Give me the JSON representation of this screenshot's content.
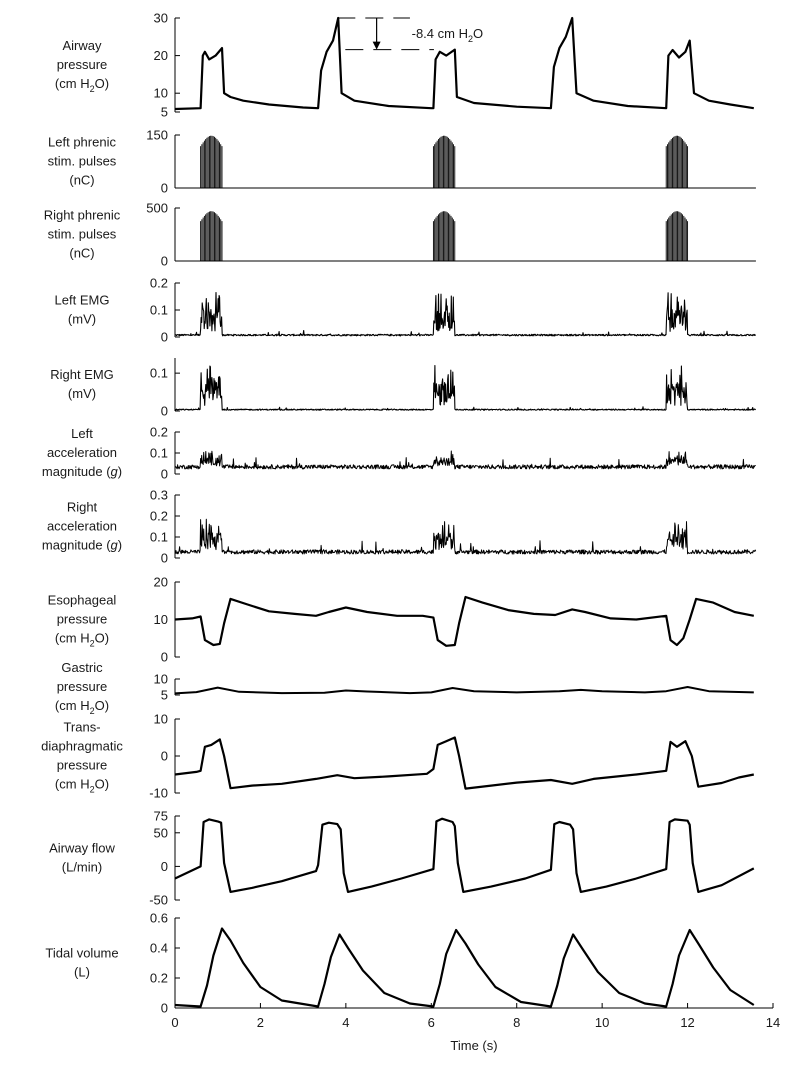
{
  "chart_data": {
    "type": "line",
    "xlabel": "Time (s)",
    "xlim": [
      0,
      14
    ],
    "xticks": [
      0,
      2,
      4,
      6,
      8,
      10,
      12,
      14
    ],
    "stim_windows": [
      [
        0.6,
        1.1
      ],
      [
        6.05,
        6.55
      ],
      [
        11.5,
        12.0
      ]
    ],
    "breath_starts": [
      0.6,
      3.35,
      6.05,
      8.8,
      11.5
    ],
    "annotation": {
      "text": "-8.4 cm H",
      "sub": "2",
      "tail": "O",
      "x_from": 3.8,
      "x_to": 5.5,
      "y_top": 30,
      "y_bottom": 21.6
    },
    "panels": [
      {
        "id": "airway-pressure",
        "label": [
          "Airway",
          "pressure",
          "(cm H|2|O)"
        ],
        "ylim": [
          5,
          30
        ],
        "yticks": [
          5,
          10,
          20,
          30
        ],
        "top": 18,
        "bottom": 112,
        "stroke": 2.2,
        "points": [
          [
            0,
            5.8
          ],
          [
            0.6,
            6
          ],
          [
            0.65,
            20
          ],
          [
            0.7,
            21
          ],
          [
            0.8,
            19
          ],
          [
            0.95,
            20
          ],
          [
            1.1,
            22
          ],
          [
            1.15,
            10
          ],
          [
            1.3,
            9
          ],
          [
            1.6,
            8
          ],
          [
            2.2,
            7
          ],
          [
            3.0,
            6.2
          ],
          [
            3.35,
            6
          ],
          [
            3.42,
            16
          ],
          [
            3.55,
            21
          ],
          [
            3.7,
            24
          ],
          [
            3.82,
            30
          ],
          [
            3.9,
            10
          ],
          [
            4.2,
            8
          ],
          [
            5.0,
            6.6
          ],
          [
            6.0,
            6
          ],
          [
            6.05,
            6
          ],
          [
            6.1,
            19
          ],
          [
            6.2,
            21
          ],
          [
            6.35,
            20
          ],
          [
            6.55,
            21.6
          ],
          [
            6.6,
            9
          ],
          [
            7.0,
            7.4
          ],
          [
            8.0,
            6.4
          ],
          [
            8.8,
            6
          ],
          [
            8.87,
            17
          ],
          [
            9.0,
            22
          ],
          [
            9.15,
            25
          ],
          [
            9.3,
            30
          ],
          [
            9.4,
            10
          ],
          [
            9.8,
            8
          ],
          [
            10.6,
            6.6
          ],
          [
            11.5,
            6
          ],
          [
            11.55,
            20
          ],
          [
            11.65,
            21.5
          ],
          [
            11.8,
            19.5
          ],
          [
            11.95,
            21
          ],
          [
            12.05,
            24
          ],
          [
            12.15,
            10
          ],
          [
            12.5,
            8
          ],
          [
            13.0,
            7
          ],
          [
            13.55,
            6
          ]
        ]
      },
      {
        "id": "left-phrenic",
        "label": [
          "Left phrenic",
          "stim. pulses",
          "(nC)"
        ],
        "ylim": [
          0,
          150
        ],
        "yticks": [
          0,
          150
        ],
        "top": 135,
        "bottom": 188,
        "spikes": true,
        "spike_peak": 148
      },
      {
        "id": "right-phrenic",
        "label": [
          "Right phrenic",
          "stim. pulses",
          "(nC)"
        ],
        "ylim": [
          0,
          500
        ],
        "yticks": [
          0,
          500
        ],
        "top": 208,
        "bottom": 261,
        "spikes": true,
        "spike_peak": 470
      },
      {
        "id": "left-emg",
        "label": [
          "Left EMG",
          "(mV)"
        ],
        "ylim": [
          0,
          0.2
        ],
        "yticks": [
          0,
          0.1,
          0.2
        ],
        "top": 283,
        "bottom": 337,
        "stroke": 1.1,
        "noise": {
          "base": 0.006,
          "amp": 0.006,
          "burst": 0.16
        }
      },
      {
        "id": "right-emg",
        "label": [
          "Right EMG",
          "(mV)"
        ],
        "ylim": [
          0,
          0.14
        ],
        "yticks": [
          0,
          0.1
        ],
        "top": 358,
        "bottom": 411,
        "stroke": 1.1,
        "noise": {
          "base": 0.003,
          "amp": 0.003,
          "burst": 0.12
        }
      },
      {
        "id": "left-accel",
        "label": [
          "Left",
          "acceleration",
          "magnitude (|g|)"
        ],
        "ylim": [
          0,
          0.2
        ],
        "yticks": [
          0,
          0.1,
          0.2
        ],
        "top": 432,
        "bottom": 474,
        "stroke": 1,
        "noise": {
          "base": 0.03,
          "amp": 0.02,
          "burst": 0.08
        }
      },
      {
        "id": "right-accel",
        "label": [
          "Right",
          "acceleration",
          "magnitude (|g|)"
        ],
        "ylim": [
          0,
          0.3
        ],
        "yticks": [
          0,
          0.1,
          0.2,
          0.3
        ],
        "top": 495,
        "bottom": 558,
        "stroke": 1,
        "noise": {
          "base": 0.025,
          "amp": 0.02,
          "burst": 0.16
        }
      },
      {
        "id": "esophageal",
        "label": [
          "Esophageal",
          "pressure",
          "(cm H|2|O)"
        ],
        "ylim": [
          0,
          20
        ],
        "yticks": [
          0,
          10,
          20
        ],
        "top": 582,
        "bottom": 657,
        "stroke": 2.2,
        "points": [
          [
            0,
            10
          ],
          [
            0.4,
            10.3
          ],
          [
            0.6,
            10.8
          ],
          [
            0.7,
            4.5
          ],
          [
            0.9,
            3.2
          ],
          [
            1.05,
            3.5
          ],
          [
            1.15,
            9
          ],
          [
            1.3,
            15.5
          ],
          [
            1.7,
            14
          ],
          [
            2.2,
            12.2
          ],
          [
            2.8,
            11.5
          ],
          [
            3.3,
            11
          ],
          [
            3.6,
            12
          ],
          [
            4.0,
            13.2
          ],
          [
            4.5,
            12
          ],
          [
            5.2,
            11
          ],
          [
            5.8,
            11
          ],
          [
            6.05,
            10.5
          ],
          [
            6.15,
            4.5
          ],
          [
            6.35,
            3
          ],
          [
            6.55,
            3.2
          ],
          [
            6.65,
            9
          ],
          [
            6.8,
            16
          ],
          [
            7.2,
            14.5
          ],
          [
            7.8,
            12.5
          ],
          [
            8.4,
            11.5
          ],
          [
            8.9,
            11.2
          ],
          [
            9.3,
            12.7
          ],
          [
            9.6,
            12
          ],
          [
            10.2,
            10.3
          ],
          [
            10.8,
            10
          ],
          [
            11.5,
            11
          ],
          [
            11.6,
            4.5
          ],
          [
            11.75,
            3.2
          ],
          [
            11.9,
            5
          ],
          [
            12.05,
            10
          ],
          [
            12.2,
            15.5
          ],
          [
            12.6,
            14.5
          ],
          [
            13.1,
            12
          ],
          [
            13.55,
            11
          ]
        ]
      },
      {
        "id": "gastric",
        "label": [
          "Gastric",
          "pressure",
          "(cm H|2|O)"
        ],
        "ylim": [
          5,
          10
        ],
        "yticks": [
          5,
          10
        ],
        "top": 679,
        "bottom": 695,
        "stroke": 2,
        "points": [
          [
            0,
            5.5
          ],
          [
            0.5,
            5.9
          ],
          [
            1.0,
            7.3
          ],
          [
            1.5,
            6
          ],
          [
            2.5,
            5.6
          ],
          [
            3.5,
            5.7
          ],
          [
            4.0,
            6.4
          ],
          [
            4.5,
            6.1
          ],
          [
            5.5,
            5.6
          ],
          [
            6.0,
            5.8
          ],
          [
            6.5,
            7.2
          ],
          [
            7.0,
            6.2
          ],
          [
            8.0,
            5.8
          ],
          [
            9.0,
            6.2
          ],
          [
            9.5,
            6.6
          ],
          [
            10.0,
            6.2
          ],
          [
            11.0,
            5.8
          ],
          [
            11.5,
            6.2
          ],
          [
            12.0,
            7.5
          ],
          [
            12.5,
            6.2
          ],
          [
            13.55,
            5.8
          ]
        ]
      },
      {
        "id": "transdiaphragmatic",
        "label": [
          "Trans-",
          "diaphragmatic",
          "pressure",
          "(cm H|2|O)"
        ],
        "ylim": [
          -10,
          10
        ],
        "yticks": [
          -10,
          0,
          10
        ],
        "top": 719,
        "bottom": 793,
        "stroke": 2.2,
        "points": [
          [
            0,
            -5
          ],
          [
            0.5,
            -4.3
          ],
          [
            0.6,
            -4
          ],
          [
            0.7,
            2.5
          ],
          [
            0.85,
            3
          ],
          [
            1.05,
            4.5
          ],
          [
            1.15,
            0
          ],
          [
            1.3,
            -8.7
          ],
          [
            1.8,
            -8
          ],
          [
            2.5,
            -7.5
          ],
          [
            3.3,
            -6.2
          ],
          [
            3.8,
            -5.2
          ],
          [
            4.2,
            -6
          ],
          [
            5.0,
            -5.5
          ],
          [
            5.9,
            -4.8
          ],
          [
            6.05,
            -3.5
          ],
          [
            6.15,
            3
          ],
          [
            6.35,
            4
          ],
          [
            6.55,
            5
          ],
          [
            6.65,
            0
          ],
          [
            6.8,
            -8.8
          ],
          [
            7.4,
            -8
          ],
          [
            8.0,
            -7.2
          ],
          [
            8.8,
            -6.5
          ],
          [
            9.3,
            -7.5
          ],
          [
            9.8,
            -6.2
          ],
          [
            10.8,
            -5
          ],
          [
            11.5,
            -4
          ],
          [
            11.6,
            3.8
          ],
          [
            11.75,
            2.5
          ],
          [
            11.95,
            4
          ],
          [
            12.1,
            0
          ],
          [
            12.25,
            -8.3
          ],
          [
            12.8,
            -7.3
          ],
          [
            13.2,
            -5.8
          ],
          [
            13.55,
            -5
          ]
        ]
      },
      {
        "id": "airway-flow",
        "label": [
          "Airway flow",
          "(L/min)"
        ],
        "ylim": [
          -50,
          75
        ],
        "yticks": [
          -50,
          0,
          50,
          75
        ],
        "top": 816,
        "bottom": 900,
        "stroke": 2.2,
        "points": [
          [
            0,
            -18
          ],
          [
            0.5,
            -3
          ],
          [
            0.6,
            0
          ],
          [
            0.67,
            66
          ],
          [
            0.8,
            70
          ],
          [
            1.0,
            67
          ],
          [
            1.08,
            65
          ],
          [
            1.15,
            5
          ],
          [
            1.3,
            -38
          ],
          [
            1.8,
            -32
          ],
          [
            2.5,
            -22
          ],
          [
            3.3,
            -7
          ],
          [
            3.35,
            2
          ],
          [
            3.45,
            62
          ],
          [
            3.6,
            65
          ],
          [
            3.8,
            63
          ],
          [
            3.88,
            55
          ],
          [
            3.95,
            -10
          ],
          [
            4.05,
            -38
          ],
          [
            4.6,
            -30
          ],
          [
            5.3,
            -18
          ],
          [
            6.05,
            -4
          ],
          [
            6.12,
            67
          ],
          [
            6.25,
            71
          ],
          [
            6.5,
            66
          ],
          [
            6.55,
            60
          ],
          [
            6.62,
            5
          ],
          [
            6.75,
            -38
          ],
          [
            7.4,
            -30
          ],
          [
            8.2,
            -18
          ],
          [
            8.8,
            -5
          ],
          [
            8.88,
            63
          ],
          [
            9.0,
            66
          ],
          [
            9.25,
            62
          ],
          [
            9.32,
            55
          ],
          [
            9.4,
            -10
          ],
          [
            9.5,
            -38
          ],
          [
            10.1,
            -30
          ],
          [
            10.8,
            -18
          ],
          [
            11.5,
            -4
          ],
          [
            11.58,
            66
          ],
          [
            11.7,
            70
          ],
          [
            12.0,
            68
          ],
          [
            12.05,
            62
          ],
          [
            12.12,
            5
          ],
          [
            12.25,
            -38
          ],
          [
            12.8,
            -28
          ],
          [
            13.55,
            -3
          ]
        ]
      },
      {
        "id": "tidal-volume",
        "label": [
          "Tidal volume",
          "(L)"
        ],
        "ylim": [
          0,
          0.6
        ],
        "yticks": [
          0,
          0.2,
          0.4,
          0.6
        ],
        "top": 918,
        "bottom": 1008,
        "stroke": 2.2,
        "points": [
          [
            0,
            0.02
          ],
          [
            0.6,
            0.01
          ],
          [
            0.75,
            0.15
          ],
          [
            0.9,
            0.35
          ],
          [
            1.1,
            0.53
          ],
          [
            1.3,
            0.45
          ],
          [
            1.6,
            0.3
          ],
          [
            2.0,
            0.14
          ],
          [
            2.5,
            0.05
          ],
          [
            3.35,
            0.01
          ],
          [
            3.5,
            0.16
          ],
          [
            3.65,
            0.34
          ],
          [
            3.85,
            0.49
          ],
          [
            4.05,
            0.4
          ],
          [
            4.4,
            0.25
          ],
          [
            4.9,
            0.1
          ],
          [
            5.5,
            0.03
          ],
          [
            6.05,
            0.01
          ],
          [
            6.2,
            0.16
          ],
          [
            6.35,
            0.36
          ],
          [
            6.58,
            0.52
          ],
          [
            6.8,
            0.43
          ],
          [
            7.1,
            0.29
          ],
          [
            7.5,
            0.14
          ],
          [
            8.1,
            0.04
          ],
          [
            8.8,
            0.01
          ],
          [
            8.95,
            0.15
          ],
          [
            9.1,
            0.33
          ],
          [
            9.32,
            0.49
          ],
          [
            9.55,
            0.39
          ],
          [
            9.9,
            0.24
          ],
          [
            10.4,
            0.1
          ],
          [
            11.0,
            0.03
          ],
          [
            11.5,
            0.01
          ],
          [
            11.65,
            0.16
          ],
          [
            11.8,
            0.35
          ],
          [
            12.05,
            0.52
          ],
          [
            12.25,
            0.43
          ],
          [
            12.6,
            0.27
          ],
          [
            13.0,
            0.12
          ],
          [
            13.55,
            0.02
          ]
        ]
      }
    ]
  }
}
